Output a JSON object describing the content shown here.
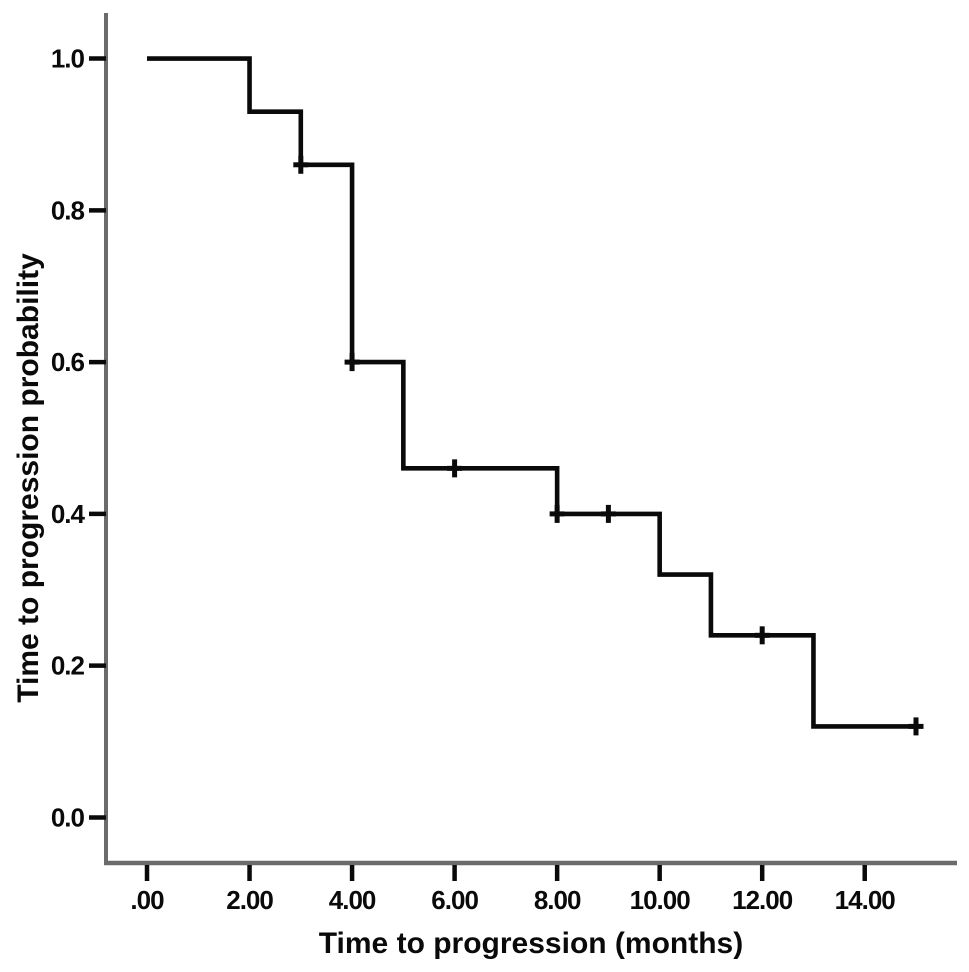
{
  "figure": {
    "background": "#ffffff"
  },
  "chart_data": {
    "type": "line",
    "variant": "kaplan_meier_step",
    "title": "",
    "xlabel": "Time to progression (months)",
    "ylabel": "Time to progression probability",
    "x_tick_labels": [
      ".00",
      "2.00",
      "4.00",
      "6.00",
      "8.00",
      "10.00",
      "12.00",
      "14.00"
    ],
    "x_tick_values": [
      0,
      2,
      4,
      6,
      8,
      10,
      12,
      14
    ],
    "y_tick_labels": [
      "0.0",
      "0.2",
      "0.4",
      "0.6",
      "0.8",
      "1.0"
    ],
    "y_tick_values": [
      0.0,
      0.2,
      0.4,
      0.6,
      0.8,
      1.0
    ],
    "xlim": [
      -0.8,
      15.8
    ],
    "ylim": [
      -0.06,
      1.06
    ],
    "grid": false,
    "legend": "none",
    "series": [
      {
        "name": "Time to progression probability",
        "start": {
          "t": 0,
          "s": 1.0
        },
        "drops": [
          {
            "t": 2,
            "s": 0.93
          },
          {
            "t": 3,
            "s": 0.86
          },
          {
            "t": 4,
            "s": 0.6
          },
          {
            "t": 5,
            "s": 0.46
          },
          {
            "t": 8,
            "s": 0.4
          },
          {
            "t": 10,
            "s": 0.32
          },
          {
            "t": 11,
            "s": 0.24
          },
          {
            "t": 13,
            "s": 0.12
          }
        ],
        "end_t": 15.05,
        "censored": [
          {
            "t": 3,
            "s": 0.86
          },
          {
            "t": 4,
            "s": 0.6
          },
          {
            "t": 6,
            "s": 0.46
          },
          {
            "t": 8,
            "s": 0.4
          },
          {
            "t": 9,
            "s": 0.4
          },
          {
            "t": 12,
            "s": 0.24
          },
          {
            "t": 15,
            "s": 0.12
          }
        ]
      }
    ],
    "colors": {
      "curve": "#0a0a0a",
      "censor": "#0a0a0a",
      "axis": "#6b6b6b",
      "tick": "#0a0a0a",
      "text": "#0a0a0a",
      "background": "#ffffff"
    }
  }
}
